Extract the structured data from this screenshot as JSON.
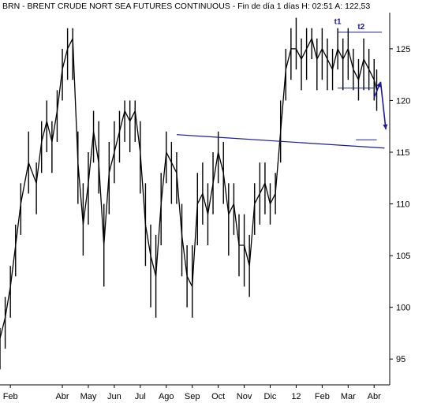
{
  "chart_data": {
    "type": "line",
    "title": "BRN - BRENT CRUDE NORT SEA FUTURES CONTINUOUS - Fin de día 1 días  H: 02:51  A: 122,53",
    "xlabel": "",
    "ylabel": "",
    "ylim": [
      92.5,
      128.5
    ],
    "grid": false,
    "y_ticks": [
      95,
      100,
      105,
      110,
      115,
      120,
      125
    ],
    "x_ticks": [
      "Feb",
      "Abr",
      "May",
      "Jun",
      "Jul",
      "Ago",
      "Sep",
      "Oct",
      "Nov",
      "Dic",
      "12",
      "Feb",
      "Mar",
      "Abr"
    ],
    "x_tick_month_index": [
      0,
      2,
      3,
      4,
      5,
      6,
      7,
      8,
      9,
      10,
      11,
      12,
      13,
      14
    ],
    "x_range_months": [
      -0.4,
      14.6
    ],
    "series": [
      {
        "name": "",
        "color": "#000000",
        "x_month_index": [
          -0.4,
          -0.2,
          0,
          0.2,
          0.4,
          0.7,
          1,
          1.2,
          1.4,
          1.6,
          1.8,
          2,
          2.2,
          2.4,
          2.6,
          2.8,
          3,
          3.2,
          3.4,
          3.6,
          3.8,
          4,
          4.2,
          4.4,
          4.6,
          4.8,
          5,
          5.2,
          5.4,
          5.6,
          5.8,
          6,
          6.2,
          6.4,
          6.6,
          6.8,
          7,
          7.2,
          7.4,
          7.6,
          7.8,
          8,
          8.2,
          8.4,
          8.6,
          8.8,
          9,
          9.2,
          9.4,
          9.6,
          9.8,
          10,
          10.2,
          10.4,
          10.6,
          10.8,
          11,
          11.2,
          11.4,
          11.6,
          11.8,
          12,
          12.2,
          12.4,
          12.6,
          12.8,
          13,
          13.2,
          13.4,
          13.6,
          13.8,
          14,
          14.1
        ],
        "values": [
          97,
          99,
          102,
          106,
          110,
          114,
          112,
          116,
          118,
          116,
          119,
          123,
          125,
          126,
          114,
          108,
          112,
          117,
          114,
          106,
          113,
          115,
          117,
          119,
          118,
          119,
          115,
          108,
          105,
          103,
          110,
          115,
          114,
          113,
          107,
          103,
          102,
          110,
          111,
          109,
          112,
          115,
          113,
          109,
          110,
          106,
          106,
          104,
          110,
          111,
          112,
          110,
          111,
          117,
          123,
          125,
          125,
          124,
          125,
          126,
          124,
          125,
          124,
          123,
          125,
          124,
          125,
          123,
          122,
          124,
          123,
          122,
          121
        ],
        "high": [
          98,
          101,
          104,
          108,
          112,
          117,
          114,
          118,
          120,
          118,
          121,
          125,
          127,
          127,
          117,
          112,
          115,
          119,
          118,
          110,
          116,
          118,
          119,
          120,
          120,
          120,
          118,
          112,
          108,
          107,
          113,
          117,
          116,
          115,
          110,
          106,
          106,
          113,
          114,
          112,
          115,
          117,
          116,
          112,
          112,
          109,
          109,
          107,
          112,
          114,
          114,
          112,
          113,
          120,
          125,
          127,
          128,
          126,
          127,
          127,
          126,
          127,
          126,
          125,
          127,
          126,
          127,
          125,
          124,
          126,
          125,
          124,
          123
        ],
        "low": [
          94,
          96,
          99,
          103,
          107,
          111,
          109,
          113,
          115,
          113,
          116,
          120,
          122,
          122,
          110,
          105,
          108,
          114,
          111,
          102,
          109,
          112,
          114,
          116,
          115,
          116,
          111,
          104,
          100,
          99,
          106,
          112,
          110,
          110,
          103,
          100,
          99,
          106,
          108,
          106,
          109,
          112,
          110,
          105,
          107,
          103,
          102,
          101,
          107,
          108,
          109,
          108,
          109,
          114,
          120,
          122,
          123,
          121,
          122,
          124,
          121,
          122,
          121,
          121,
          123,
          121,
          122,
          121,
          120,
          121,
          121,
          120,
          119
        ]
      }
    ],
    "annotations": {
      "trendline": {
        "from_month": 6.4,
        "from_value": 116.7,
        "to_month": 14.4,
        "to_value": 115.4,
        "color": "#1a1aa0"
      },
      "t1_label": "t1",
      "t2_label": "t2",
      "t1": {
        "month": 12.6,
        "value": 127.7
      },
      "t2": {
        "month": 13.5,
        "value": 127.2
      },
      "top_line": {
        "from_month": 12.6,
        "to_month": 14.3,
        "value": 126.6
      },
      "neckline": {
        "from_month": 12.6,
        "to_month": 14.0,
        "value": 121.2
      },
      "target_line": {
        "from_month": 13.3,
        "to_month": 14.1,
        "value": 116.2
      },
      "arrow_up": {
        "from_month": 14.0,
        "from_value": 120.3,
        "to_month": 14.25,
        "to_value": 121.8
      },
      "arrow_down": {
        "from_month": 14.25,
        "from_value": 121.8,
        "to_month": 14.45,
        "to_value": 117.2
      }
    }
  }
}
